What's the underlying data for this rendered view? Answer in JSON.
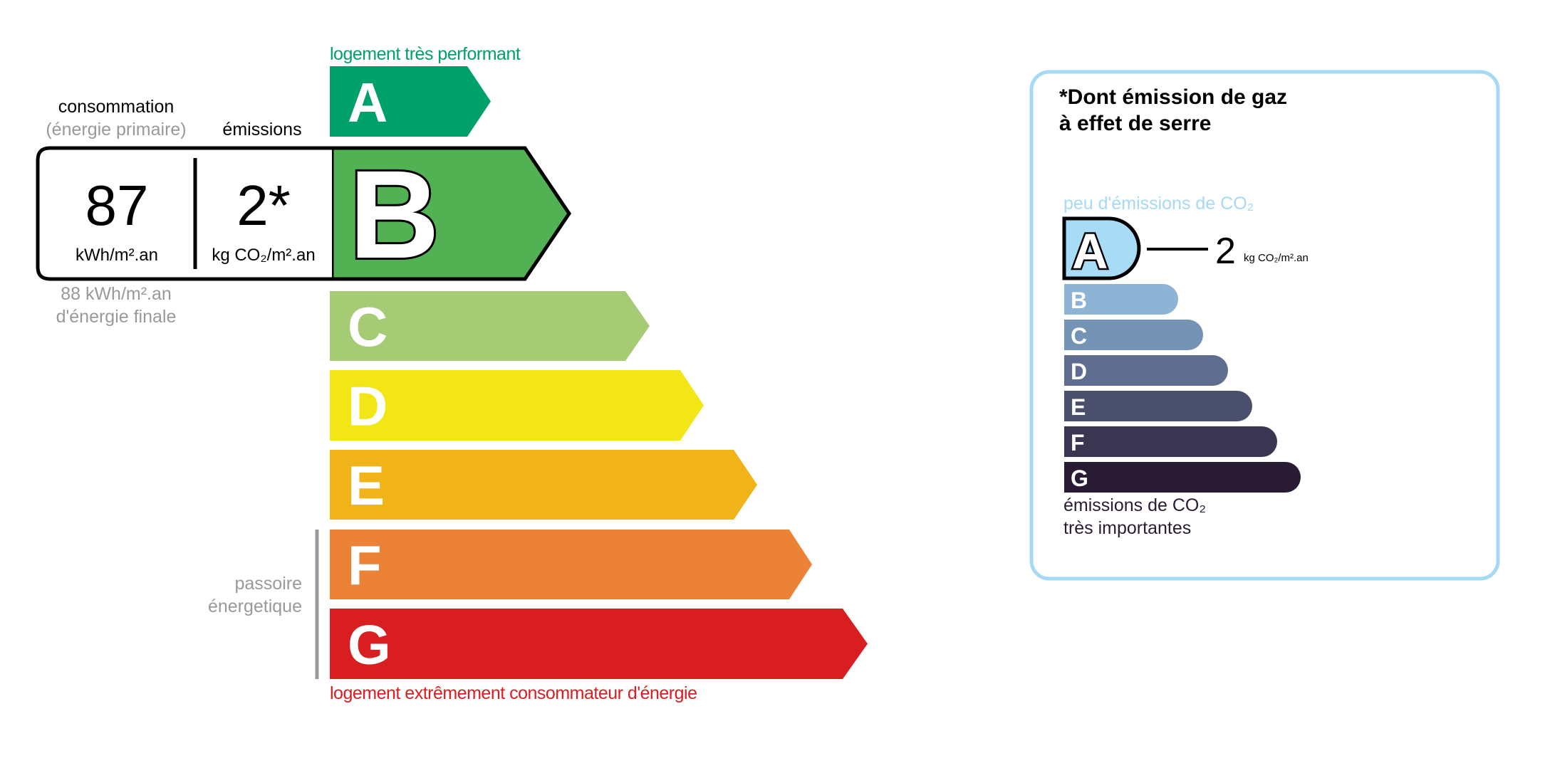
{
  "energy": {
    "top_label": "logement très performant",
    "bottom_label": "logement extrêmement consommateur d'énergie",
    "classes": [
      "A",
      "B",
      "C",
      "D",
      "E",
      "F",
      "G"
    ],
    "colors": [
      "#00a06b",
      "#52b153",
      "#a5cc74",
      "#f2e617",
      "#f0b418",
      "#eb8235",
      "#d81e20"
    ],
    "selected_class": "B",
    "passoire_label": [
      "passoire",
      "énergetique"
    ],
    "consumption_header": "consommation",
    "consumption_subheader": "(énergie primaire)",
    "emissions_header": "émissions",
    "consumption_value": "87",
    "consumption_unit": "kWh/m².an",
    "emissions_value": "2*",
    "emissions_unit": "kg CO₂/m².an",
    "final_energy_value": "88 kWh/m².an",
    "final_energy_label": "d'énergie finale"
  },
  "ges": {
    "title_line1": "*Dont émission de gaz",
    "title_line2": "à effet de serre",
    "top_label": "peu d'émissions de CO₂",
    "bottom_label_line1": "émissions de CO₂",
    "bottom_label_line2": "très importantes",
    "classes": [
      "A",
      "B",
      "C",
      "D",
      "E",
      "F",
      "G"
    ],
    "colors": [
      "#a7dbf6",
      "#8db4d4",
      "#7593b5",
      "#5f6d90",
      "#4b4f6e",
      "#3a3652",
      "#2a1b35"
    ],
    "selected_class": "A",
    "value": "2",
    "unit": "kg CO₂/m².an",
    "border_color": "#a5d9f5"
  }
}
